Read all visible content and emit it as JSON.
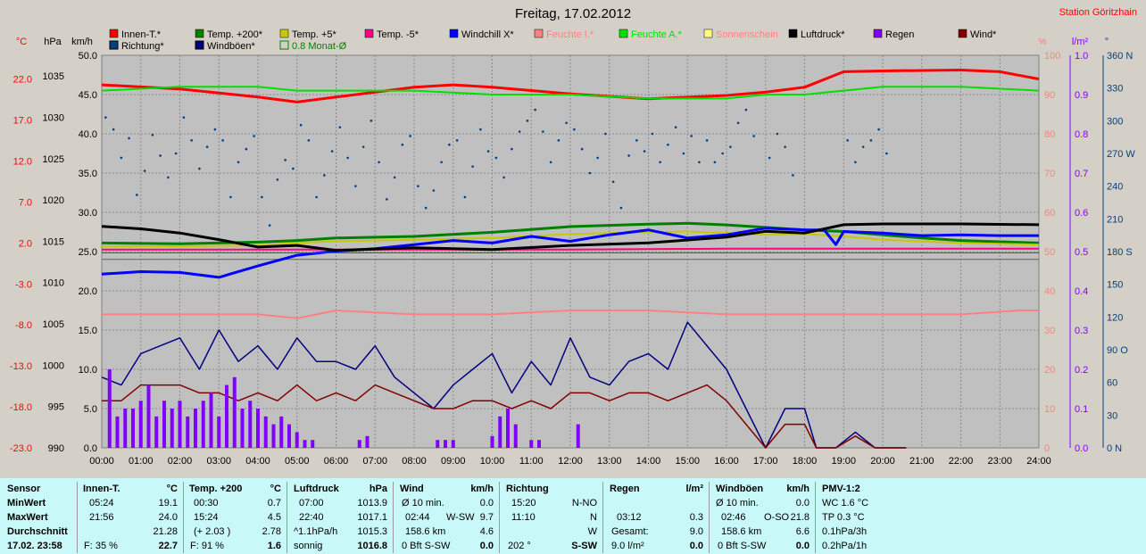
{
  "title": "Freitag, 17.02.2012",
  "station": "Station Göritzhain",
  "colors": {
    "innen": "#ff0000",
    "temp200": "#008000",
    "temp5": "#c8c800",
    "tempm5": "#ff0080",
    "windchill": "#0000ff",
    "feuchteI": "#ff8080",
    "feuchteA": "#00e000",
    "sonne": "#ffff80",
    "luftdruck": "#000000",
    "regen": "#8000ff",
    "wind": "#800000",
    "richtung": "#004080",
    "windboeen": "#000080",
    "monat": "#008000"
  },
  "legend_row1": [
    {
      "label": "Innen-T.*",
      "color": "#ff0000",
      "textcolor": "#000000"
    },
    {
      "label": "Temp. +200*",
      "color": "#008000",
      "textcolor": "#000000"
    },
    {
      "label": "Temp. +5*",
      "color": "#c8c800",
      "textcolor": "#000000"
    },
    {
      "label": "Temp. -5*",
      "color": "#ff0080",
      "textcolor": "#000000"
    },
    {
      "label": "Windchill X*",
      "color": "#0000ff",
      "textcolor": "#000000"
    },
    {
      "label": "Feuchte I.*",
      "color": "#ff8080",
      "textcolor": "#ff8080"
    },
    {
      "label": "Feuchte A.*",
      "color": "#00e000",
      "textcolor": "#00e000"
    },
    {
      "label": "Sonnenschein",
      "color": "#ffff80",
      "textcolor": "#ff8080"
    },
    {
      "label": "Luftdruck*",
      "color": "#000000",
      "textcolor": "#000000"
    },
    {
      "label": "Regen",
      "color": "#8000ff",
      "textcolor": "#000000"
    },
    {
      "label": "Wind*",
      "color": "#800000",
      "textcolor": "#000000"
    }
  ],
  "legend_row2": [
    {
      "label": "Richtung*",
      "color": "#004080",
      "textcolor": "#000000"
    },
    {
      "label": "Windböen*",
      "color": "#000080",
      "textcolor": "#000000"
    },
    {
      "label": "0.8 Monat-Ø",
      "color": "#008000",
      "textcolor": "#008000"
    }
  ],
  "axis_units": {
    "temp": "°C",
    "hpa": "hPa",
    "kmh": "km/h",
    "pct": "%",
    "lm2": "l/m²",
    "deg": "°"
  },
  "chart_data": {
    "type": "line",
    "x_ticks": [
      "00:00",
      "01:00",
      "02:00",
      "03:00",
      "04:00",
      "05:00",
      "06:00",
      "07:00",
      "08:00",
      "09:00",
      "10:00",
      "11:00",
      "12:00",
      "13:00",
      "14:00",
      "15:00",
      "16:00",
      "17:00",
      "18:00",
      "19:00",
      "20:00",
      "21:00",
      "22:00",
      "23:00",
      "24:00"
    ],
    "axes": {
      "temp_c": {
        "ticks": [
          "22.0",
          "17.0",
          "12.0",
          "7.0",
          "2.0",
          "-3.0",
          "-8.0",
          "-13.0",
          "-18.0",
          "-23.0"
        ],
        "range": [
          -23,
          24.9
        ]
      },
      "pressure_hpa": {
        "ticks": [
          "1035",
          "1030",
          "1025",
          "1020",
          "1015",
          "1010",
          "1005",
          "1000",
          "995",
          "990"
        ],
        "range": [
          990,
          1037.5
        ]
      },
      "wind_kmh": {
        "ticks": [
          "50.0",
          "45.0",
          "40.0",
          "35.0",
          "30.0",
          "25.0",
          "20.0",
          "15.0",
          "10.0",
          "5.0",
          "0.0"
        ],
        "range": [
          0,
          50
        ]
      },
      "humidity_pct": {
        "ticks": [
          "100",
          "90",
          "80",
          "70",
          "60",
          "50",
          "40",
          "30",
          "20",
          "10",
          "0"
        ],
        "range": [
          0,
          100
        ]
      },
      "rain_lm2": {
        "ticks": [
          "1.0",
          "0.9",
          "0.8",
          "0.7",
          "0.6",
          "0.5",
          "0.4",
          "0.3",
          "0.2",
          "0.1",
          "0.0"
        ],
        "range": [
          0,
          1.0
        ]
      },
      "direction_deg": {
        "ticks": [
          "360 N",
          "330",
          "300",
          "270 W",
          "240",
          "210",
          "180 S",
          "150",
          "120",
          "90 O",
          "60",
          "30",
          "0 N"
        ],
        "range": [
          0,
          360
        ]
      }
    },
    "series": [
      {
        "name": "Innen-T.*",
        "axis": "temp_c",
        "x": [
          0,
          2,
          4,
          5,
          6,
          8,
          9,
          10,
          12,
          14,
          16,
          17,
          18,
          19,
          20,
          22,
          23,
          24
        ],
        "y": [
          21.3,
          20.8,
          19.8,
          19.2,
          19.8,
          21.0,
          21.3,
          21.0,
          20.2,
          19.6,
          20.0,
          20.4,
          21.0,
          22.9,
          23.0,
          23.1,
          22.9,
          22.0
        ]
      },
      {
        "name": "Feuchte A.*",
        "axis": "humidity_pct",
        "x": [
          0,
          2,
          4,
          5,
          6,
          8,
          10,
          12,
          14,
          16,
          17,
          18,
          19,
          20,
          22,
          24
        ],
        "y": [
          91,
          92,
          92,
          91,
          91,
          91,
          90,
          90,
          89,
          89,
          90,
          90,
          91,
          92,
          92,
          91
        ]
      },
      {
        "name": "Temp. +200*",
        "axis": "temp_c",
        "x": [
          0,
          2,
          4,
          5,
          6,
          8,
          10,
          12,
          14,
          15,
          16,
          17,
          18,
          19,
          20,
          21,
          22,
          24
        ],
        "y": [
          2.0,
          1.9,
          2.1,
          2.3,
          2.6,
          2.8,
          3.3,
          4.0,
          4.3,
          4.4,
          4.2,
          3.9,
          3.6,
          3.4,
          3.0,
          2.6,
          2.3,
          2.0
        ]
      },
      {
        "name": "Temp. +5*",
        "axis": "temp_c",
        "x": [
          0,
          2,
          4,
          5,
          6,
          8,
          10,
          12,
          14,
          15,
          16,
          17,
          18,
          19,
          20,
          22,
          24
        ],
        "y": [
          1.6,
          1.6,
          1.7,
          2.0,
          2.2,
          2.4,
          2.6,
          3.1,
          3.3,
          3.4,
          3.2,
          3.0,
          3.1,
          2.8,
          2.4,
          2.0,
          1.8
        ]
      },
      {
        "name": "Temp. -5*",
        "axis": "temp_c",
        "x": [
          0,
          4,
          8,
          12,
          16,
          20,
          24
        ],
        "y": [
          1.2,
          1.2,
          1.2,
          1.2,
          1.3,
          1.3,
          1.3
        ]
      },
      {
        "name": "Windchill X*",
        "axis": "temp_c",
        "x": [
          0,
          1,
          2,
          3,
          4,
          5,
          6,
          7,
          8,
          9,
          10,
          11,
          12,
          13,
          14,
          15,
          16,
          17,
          18,
          18.5,
          18.8,
          19,
          20,
          21,
          22,
          23,
          24
        ],
        "y": [
          -1.8,
          -1.5,
          -1.6,
          -2.2,
          -0.8,
          0.5,
          1.0,
          1.3,
          1.8,
          2.3,
          2.0,
          2.8,
          2.2,
          3.0,
          3.6,
          2.6,
          3.0,
          3.8,
          3.6,
          3.6,
          1.8,
          3.4,
          3.2,
          2.9,
          3.0,
          2.9,
          2.9
        ]
      },
      {
        "name": "Feuchte I.*",
        "axis": "humidity_pct",
        "x": [
          0,
          2,
          4,
          5,
          6,
          8,
          10,
          12,
          14,
          16,
          18,
          20,
          22,
          23.5,
          24
        ],
        "y": [
          34,
          34,
          34,
          33,
          35,
          34,
          34,
          35,
          35,
          34,
          34,
          34,
          34,
          35,
          35
        ]
      },
      {
        "name": "Luftdruck*",
        "axis": "pressure_hpa",
        "x": [
          0,
          1,
          2,
          3,
          4,
          5,
          6,
          8,
          10,
          12,
          14,
          16,
          17,
          18,
          19,
          20,
          22,
          24
        ],
        "y": [
          1016.8,
          1016.5,
          1016.0,
          1015.2,
          1014.3,
          1014.5,
          1013.9,
          1014.2,
          1014.0,
          1014.5,
          1014.8,
          1015.5,
          1016.2,
          1016.0,
          1017.0,
          1017.1,
          1017.1,
          1017.0
        ]
      },
      {
        "name": "Windböen*",
        "axis": "wind_kmh",
        "x": [
          0,
          0.5,
          1,
          1.5,
          2,
          2.5,
          3,
          3.5,
          4,
          4.5,
          5,
          5.5,
          6,
          6.5,
          7,
          7.5,
          8,
          8.5,
          9,
          9.5,
          10,
          10.5,
          11,
          11.5,
          12,
          12.5,
          13,
          13.5,
          14,
          14.5,
          15,
          15.5,
          16,
          16.5,
          17,
          17.5,
          18,
          18.3,
          18.8,
          19.3,
          19.8,
          20.3,
          20.6
        ],
        "y": [
          9,
          8,
          12,
          13,
          14,
          10,
          15,
          11,
          13,
          10,
          14,
          11,
          11,
          10,
          13,
          9,
          7,
          5,
          8,
          10,
          12,
          7,
          11,
          8,
          14,
          9,
          8,
          11,
          12,
          10,
          16,
          13,
          10,
          5,
          0,
          5,
          5,
          0,
          0,
          2,
          0,
          0,
          0
        ]
      },
      {
        "name": "Wind*",
        "axis": "wind_kmh",
        "x": [
          0,
          0.5,
          1,
          1.5,
          2,
          2.5,
          3,
          3.5,
          4,
          4.5,
          5,
          5.5,
          6,
          6.5,
          7,
          7.5,
          8,
          8.5,
          9,
          9.5,
          10,
          10.5,
          11,
          11.5,
          12,
          12.5,
          13,
          13.5,
          14,
          14.5,
          15,
          15.5,
          16,
          16.5,
          17,
          17.5,
          18,
          18.3,
          18.8,
          19.3,
          19.8,
          20.3,
          20.6
        ],
        "y": [
          6,
          6,
          8,
          8,
          8,
          7,
          7,
          6,
          7,
          6,
          8,
          6,
          7,
          6,
          8,
          7,
          6,
          5,
          5,
          6,
          6,
          5,
          6,
          5,
          7,
          7,
          6,
          7,
          7,
          6,
          7,
          8,
          6,
          3,
          0,
          3,
          3,
          0,
          0,
          1.5,
          0,
          0,
          0
        ]
      },
      {
        "name": "Regen",
        "axis": "rain_lm2",
        "type": "bars",
        "x": [
          0.2,
          0.4,
          0.6,
          0.8,
          1.0,
          1.2,
          1.4,
          1.6,
          1.8,
          2.0,
          2.2,
          2.4,
          2.6,
          2.8,
          3.0,
          3.2,
          3.4,
          3.6,
          3.8,
          4.0,
          4.2,
          4.4,
          4.6,
          4.8,
          5.0,
          5.2,
          5.4,
          6.6,
          6.8,
          8.6,
          8.8,
          9.0,
          10.0,
          10.2,
          10.4,
          10.6,
          11.0,
          11.2,
          12.2
        ],
        "y": [
          0.2,
          0.08,
          0.1,
          0.1,
          0.12,
          0.16,
          0.08,
          0.12,
          0.1,
          0.12,
          0.08,
          0.1,
          0.12,
          0.14,
          0.08,
          0.16,
          0.18,
          0.1,
          0.12,
          0.1,
          0.08,
          0.06,
          0.08,
          0.06,
          0.04,
          0.02,
          0.02,
          0.02,
          0.03,
          0.02,
          0.02,
          0.02,
          0.03,
          0.08,
          0.1,
          0.06,
          0.02,
          0.02,
          0.06
        ]
      },
      {
        "name": "Richtung*",
        "axis": "direction_deg",
        "type": "scatter",
        "x": [
          0.1,
          0.3,
          0.5,
          0.7,
          0.9,
          1.1,
          1.3,
          1.5,
          1.7,
          1.9,
          2.1,
          2.3,
          2.5,
          2.7,
          2.9,
          3.1,
          3.3,
          3.5,
          3.7,
          3.9,
          4.1,
          4.3,
          4.5,
          4.7,
          4.9,
          5.1,
          5.3,
          5.5,
          5.7,
          5.9,
          6.1,
          6.3,
          6.5,
          6.7,
          6.9,
          7.1,
          7.3,
          7.5,
          7.7,
          7.9,
          8.1,
          8.3,
          8.5,
          8.7,
          8.9,
          9.1,
          9.3,
          9.5,
          9.7,
          9.9,
          10.1,
          10.3,
          10.5,
          10.7,
          10.9,
          11.1,
          11.3,
          11.5,
          11.7,
          11.9,
          12.1,
          12.3,
          12.5,
          12.7,
          12.9,
          13.1,
          13.3,
          13.5,
          13.7,
          13.9,
          14.1,
          14.3,
          14.5,
          14.7,
          14.9,
          15.1,
          15.3,
          15.5,
          15.7,
          15.9,
          16.1,
          16.3,
          16.5,
          16.7,
          17.1,
          17.3,
          17.5,
          17.7,
          19.1,
          19.3,
          19.5,
          19.7,
          19.9,
          20.1
        ],
        "y": [
          303,
          292,
          266,
          284,
          232,
          254,
          287,
          268,
          248,
          270,
          303,
          282,
          256,
          276,
          292,
          282,
          230,
          262,
          274,
          286,
          230,
          204,
          246,
          264,
          256,
          296,
          282,
          230,
          250,
          272,
          294,
          266,
          240,
          276,
          300,
          262,
          228,
          248,
          278,
          286,
          240,
          220,
          236,
          262,
          278,
          282,
          230,
          258,
          292,
          272,
          266,
          248,
          274,
          290,
          300,
          310,
          290,
          262,
          282,
          298,
          292,
          274,
          252,
          266,
          288,
          244,
          220,
          268,
          282,
          272,
          288,
          262,
          278,
          294,
          270,
          286,
          262,
          282,
          262,
          270,
          276,
          298,
          310,
          286,
          266,
          288,
          276,
          250,
          282,
          262,
          276,
          282,
          292,
          270
        ]
      }
    ]
  },
  "stats": {
    "col1": {
      "h": "Sensor",
      "r1": "MinWert",
      "r2": "MaxWert",
      "r3": "Durchschnitt",
      "r4": "17.02. 23:58"
    },
    "col2": {
      "h": "Innen-T.",
      "hu": "°C",
      "r1a": "05:24",
      "r1b": "19.1",
      "r2a": "21:56",
      "r2b": "24.0",
      "r3b": "21.28",
      "r4a": "F: 35 %",
      "r4b": "22.7"
    },
    "col3": {
      "h": "Temp. +200",
      "hu": "°C",
      "r1a": "00:30",
      "r1b": "0.7",
      "r2a": "15:24",
      "r2b": "4.5",
      "r3a": "(+ 2.03 )",
      "r3b": "2.78",
      "r4a": "F: 91 %",
      "r4b": "1.6"
    },
    "col4": {
      "h": "Luftdruck",
      "hu": "hPa",
      "r1a": "07:00",
      "r1b": "1013.9",
      "r2a": "22:40",
      "r2b": "1017.1",
      "r3a": "^1.1hPa/h",
      "r3b": "1015.3",
      "r4a": "sonnig",
      "r4b": "1016.8"
    },
    "col5": {
      "h": "Wind",
      "hu": "km/h",
      "r1a": "Ø 10 min.",
      "r1b": "0.0",
      "r2a": "02:44",
      "r2m": "W-SW",
      "r2b": "9.7",
      "r3a": "158.6 km",
      "r3b": "4.6",
      "r4a": "0 Bft S-SW",
      "r4b": "0.0"
    },
    "col6": {
      "h": "Richtung",
      "r1a": "15:20",
      "r1b": "N-NO",
      "r2a": "11:10",
      "r2b": "N",
      "r3b": "W",
      "r4a": "202 °",
      "r4b": "S-SW"
    },
    "col7": {
      "h": "Regen",
      "hu": "l/m²",
      "r2a": "03:12",
      "r2b": "0.3",
      "r3a": "Gesamt:",
      "r3b": "9.0",
      "r4a": "9.0 l/m²",
      "r4b": "0.0"
    },
    "col8": {
      "h": "Windböen",
      "hu": "km/h",
      "r1a": "Ø 10 min.",
      "r1b": "0.0",
      "r2a": "02:46",
      "r2m": "O-SO",
      "r2b": "21.8",
      "r3a": "158.6 km",
      "r3b": "6.6",
      "r4a": "0 Bft S-SW",
      "r4b": "0.0"
    },
    "col9": {
      "h": "PMV-1:2",
      "r1": "WC 1.6 °C",
      "r2": "TP 0.3 °C",
      "r3": "0.1hPa/3h",
      "r4": "0.2hPa/1h"
    }
  }
}
